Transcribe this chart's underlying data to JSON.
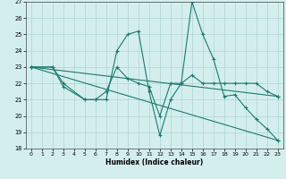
{
  "xlabel": "Humidex (Indice chaleur)",
  "background_color": "#d4eeee",
  "line_color": "#1a7a6e",
  "grid_color": "#aed4d4",
  "xlim": [
    -0.5,
    23.5
  ],
  "ylim": [
    18,
    27
  ],
  "xticks": [
    0,
    1,
    2,
    3,
    4,
    5,
    6,
    7,
    8,
    9,
    10,
    11,
    12,
    13,
    14,
    15,
    16,
    17,
    18,
    19,
    20,
    21,
    22,
    23
  ],
  "yticks": [
    18,
    19,
    20,
    21,
    22,
    23,
    24,
    25,
    26,
    27
  ],
  "series": [
    {
      "x": [
        0,
        2,
        3,
        5,
        6,
        7,
        8,
        9,
        10,
        11,
        12,
        13,
        14,
        15,
        16,
        17,
        18,
        19,
        20,
        21,
        22,
        23
      ],
      "y": [
        23,
        23,
        22,
        21,
        21,
        21,
        24,
        25,
        25.2,
        21.5,
        18.8,
        21,
        22,
        27,
        25,
        23.5,
        21.2,
        21.3,
        20.5,
        19.8,
        19.2,
        18.5
      ]
    },
    {
      "x": [
        0,
        2,
        3,
        5,
        6,
        7,
        8,
        9,
        10,
        11,
        12,
        13,
        14,
        15,
        16,
        17,
        18,
        19,
        20,
        21,
        22,
        23
      ],
      "y": [
        23,
        23,
        21.8,
        21,
        21,
        21.5,
        23,
        22.3,
        22,
        21.8,
        20,
        22,
        22,
        22.5,
        22,
        22,
        22,
        22,
        22,
        22,
        21.5,
        21.2
      ]
    },
    {
      "x": [
        0,
        23
      ],
      "y": [
        23,
        21.2
      ]
    },
    {
      "x": [
        0,
        23
      ],
      "y": [
        23,
        18.5
      ]
    }
  ]
}
